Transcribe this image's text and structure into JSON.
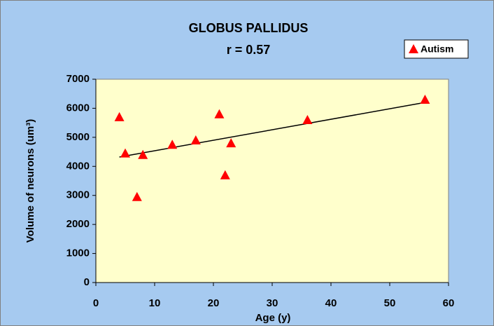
{
  "chart_data": {
    "type": "scatter",
    "title": "GLOBUS PALLIDUS",
    "subtitle": "r = 0.57",
    "x_label": "Age (y)",
    "y_label": "Volume of neurons (um³)",
    "x": [
      4,
      5,
      7,
      8,
      13,
      17,
      21,
      22,
      23,
      36,
      56
    ],
    "series": [
      {
        "name": "Autism",
        "color": "#ff0000",
        "values": [
          5700,
          4450,
          2950,
          4400,
          4750,
          4900,
          5800,
          3700,
          4800,
          5600,
          6300
        ]
      }
    ],
    "trendline": {
      "x": [
        4,
        56
      ],
      "values": [
        4320,
        6200
      ],
      "color": "#000000"
    },
    "xlim": [
      0,
      60
    ],
    "xticks": [
      0,
      10,
      20,
      30,
      40,
      50,
      60
    ],
    "ylim": [
      0,
      7000
    ],
    "yticks": [
      0,
      1000,
      2000,
      3000,
      4000,
      5000,
      6000,
      7000
    ],
    "grid": false,
    "legend": "top-right"
  }
}
